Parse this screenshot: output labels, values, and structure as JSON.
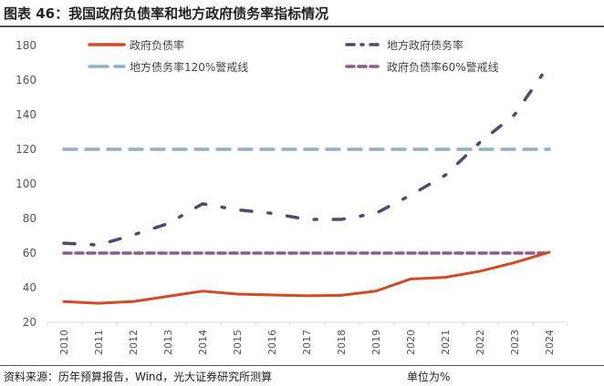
{
  "title": "图表 46：我国政府负债率和地方政府债务率指标情况",
  "source": "资料来源：历年预算报告，Wind，光大证券研究所测算",
  "unit": "单位为%",
  "chart_data": {
    "type": "line",
    "categories": [
      "2010",
      "2011",
      "2012",
      "2013",
      "2014",
      "2015",
      "2016",
      "2017",
      "2018",
      "2019",
      "2020",
      "2021",
      "2022",
      "2023",
      "2024"
    ],
    "ylim": [
      20,
      180
    ],
    "yticks": [
      20,
      40,
      60,
      80,
      100,
      120,
      140,
      160,
      180
    ],
    "grid": false,
    "legend_position": "top",
    "series": [
      {
        "name": "政府负债率",
        "color": "#d24a26",
        "style": "solid",
        "values": [
          32,
          31,
          32,
          35,
          38,
          36.3,
          35.8,
          35.3,
          35.6,
          38,
          45,
          46,
          49.5,
          54.5,
          60.5
        ]
      },
      {
        "name": "地方政府债务率",
        "color": "#4f4b6e",
        "style": "dashdot",
        "values": [
          65.7,
          64.7,
          70.5,
          77,
          88.5,
          85,
          83,
          79.5,
          79.5,
          83,
          93.5,
          105,
          124,
          140,
          169
        ]
      },
      {
        "name": "地方债务率120%警戒线",
        "color": "#8cb1c8",
        "style": "longdash",
        "values": [
          120,
          120,
          120,
          120,
          120,
          120,
          120,
          120,
          120,
          120,
          120,
          120,
          120,
          120,
          120
        ]
      },
      {
        "name": "政府负债率60%警戒线",
        "color": "#8a5b8c",
        "style": "dash",
        "values": [
          60,
          60,
          60,
          60,
          60,
          60,
          60,
          60,
          60,
          60,
          60,
          60,
          60,
          60,
          60
        ]
      }
    ]
  }
}
